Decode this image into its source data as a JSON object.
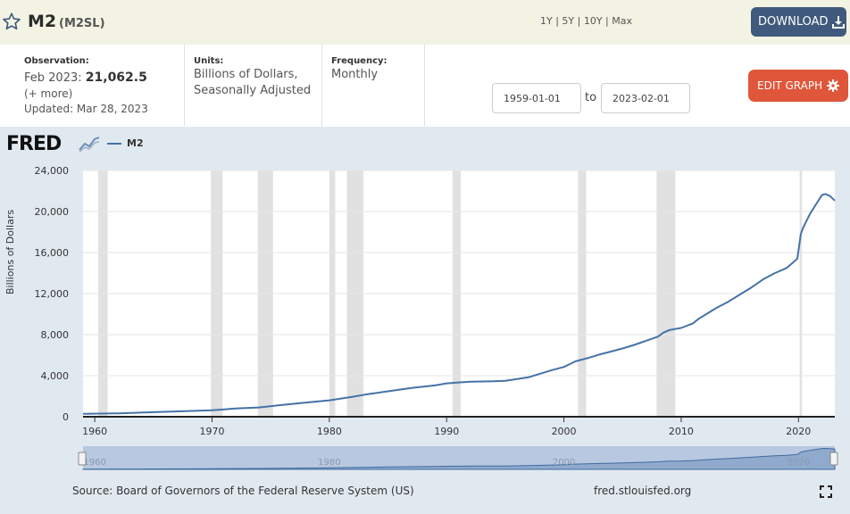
{
  "header": {
    "title": "M2",
    "series_code": "(M2SL)",
    "download_label": "DOWNLOAD",
    "star_icon": "star-outline-icon",
    "download_icon": "download-icon"
  },
  "meta": {
    "observation_label": "Observation:",
    "observation_date": "Feb 2023:",
    "observation_value": "21,062.5",
    "more_link": "(+ more)",
    "updated": "Updated: Mar 28, 2023",
    "units_label": "Units:",
    "units_line1": "Billions of Dollars,",
    "units_line2": "Seasonally Adjusted",
    "frequency_label": "Frequency:",
    "frequency_value": "Monthly"
  },
  "range": {
    "links": [
      "1Y",
      "5Y",
      "10Y",
      "Max"
    ],
    "start_date": "1959-01-01",
    "to_label": "to",
    "end_date": "2023-02-01",
    "edit_label": "EDIT GRAPH",
    "edit_icon": "gear-icon"
  },
  "logo": "FRED",
  "legend_label": "M2",
  "footer": {
    "source": "Source: Board of Governors of the Federal Reserve System (US)",
    "site": "fred.stlouisfed.org",
    "fullscreen_icon": "fullscreen-icon"
  },
  "colors": {
    "series": "#4572a7",
    "recession": "#e1e1e1",
    "download_btn": "#3f5a7c",
    "edit_btn": "#e0563a",
    "header_bg": "#f3f3e3",
    "graph_bg": "#e1e9f0"
  },
  "chart_data": {
    "type": "line",
    "ylabel": "Billions of Dollars",
    "xlim": [
      1959.0,
      2023.1
    ],
    "ylim": [
      0,
      24000
    ],
    "yticks": [
      0,
      4000,
      8000,
      12000,
      16000,
      20000,
      24000
    ],
    "ytick_labels": [
      "0",
      "4,000",
      "8,000",
      "12,000",
      "16,000",
      "20,000",
      "24,000"
    ],
    "xticks": [
      1960,
      1970,
      1980,
      1990,
      2000,
      2010,
      2020
    ],
    "xtick_labels": [
      "1960",
      "1970",
      "1980",
      "1990",
      "2000",
      "2010",
      "2020"
    ],
    "navigator_labels": [
      "1960",
      "1980",
      "2000",
      "2020"
    ],
    "recessions": [
      [
        1960.3,
        1961.1
      ],
      [
        1969.9,
        1970.9
      ],
      [
        1973.9,
        1975.2
      ],
      [
        1980.0,
        1980.5
      ],
      [
        1981.5,
        1982.9
      ],
      [
        1990.5,
        1991.2
      ],
      [
        2001.2,
        2001.9
      ],
      [
        2007.9,
        2009.5
      ],
      [
        2020.1,
        2020.3
      ]
    ],
    "series": [
      {
        "name": "M2",
        "x": [
          1959.0,
          1962.0,
          1965.0,
          1968.0,
          1970.0,
          1972.0,
          1974.0,
          1976.0,
          1978.0,
          1980.0,
          1982.0,
          1983.0,
          1985.0,
          1987.0,
          1989.0,
          1990.0,
          1992.0,
          1994.0,
          1995.0,
          1997.0,
          1999.0,
          2000.0,
          2001.0,
          2002.0,
          2003.0,
          2004.0,
          2005.0,
          2006.0,
          2007.0,
          2008.0,
          2008.5,
          2009.0,
          2010.0,
          2011.0,
          2011.5,
          2012.0,
          2013.0,
          2014.0,
          2015.0,
          2016.0,
          2017.0,
          2018.0,
          2019.0,
          2019.9,
          2020.2,
          2020.4,
          2020.6,
          2021.0,
          2021.5,
          2022.0,
          2022.3,
          2022.7,
          2023.1
        ],
        "y": [
          290,
          330,
          440,
          560,
          630,
          800,
          900,
          1150,
          1380,
          1600,
          1950,
          2150,
          2480,
          2800,
          3050,
          3250,
          3420,
          3450,
          3500,
          3850,
          4550,
          4850,
          5400,
          5700,
          6050,
          6350,
          6650,
          7000,
          7400,
          7800,
          8200,
          8450,
          8650,
          9100,
          9550,
          9900,
          10600,
          11200,
          11900,
          12600,
          13400,
          14000,
          14500,
          15400,
          17800,
          18400,
          18900,
          19800,
          20700,
          21600,
          21700,
          21500,
          21060
        ]
      }
    ]
  }
}
